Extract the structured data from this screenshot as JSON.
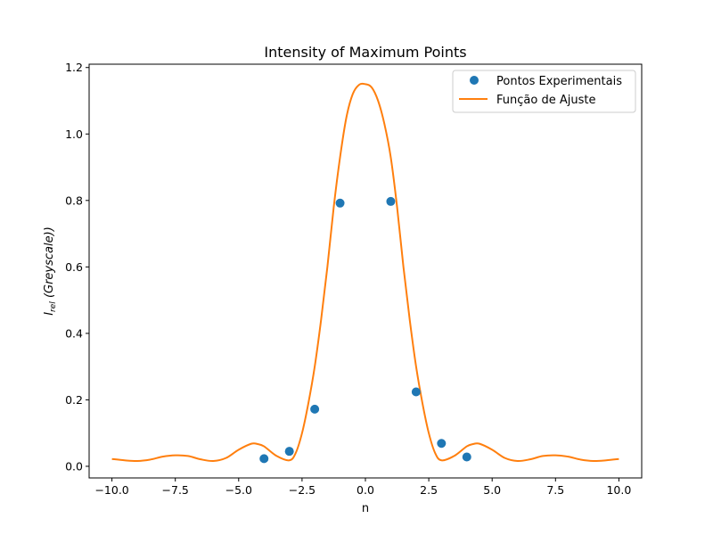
{
  "chart_data": {
    "type": "scatter",
    "title": "Intensity of Maximum Points",
    "xlabel": "n",
    "ylabel": {
      "base": "I",
      "subscript": "rel",
      "suffix": " (Greyscale))"
    },
    "xlim": [
      -10.9,
      10.9
    ],
    "ylim": [
      -0.035,
      1.21
    ],
    "grid": false,
    "legend_position": "upper right",
    "x_ticks": [
      -10.0,
      -7.5,
      -5.0,
      -2.5,
      0.0,
      2.5,
      5.0,
      7.5,
      10.0
    ],
    "x_tick_labels": [
      "−10.0",
      "−7.5",
      "−5.0",
      "−2.5",
      "0.0",
      "2.5",
      "5.0",
      "7.5",
      "10.0"
    ],
    "y_ticks": [
      0.0,
      0.2,
      0.4,
      0.6,
      0.8,
      1.0,
      1.2
    ],
    "y_tick_labels": [
      "0.0",
      "0.2",
      "0.4",
      "0.6",
      "0.8",
      "1.0",
      "1.2"
    ],
    "series": [
      {
        "name": "Pontos Experimentais",
        "kind": "scatter",
        "color": "#1f77b4",
        "x": [
          -4,
          -3,
          -2,
          -1,
          1,
          2,
          3,
          4
        ],
        "y": [
          0.023,
          0.045,
          0.172,
          0.792,
          0.797,
          0.224,
          0.069,
          0.028
        ]
      },
      {
        "name": "Função de Ajuste",
        "kind": "line",
        "color": "#ff7f0e",
        "x": [
          -10.0,
          -9.5,
          -9.0,
          -8.5,
          -8.0,
          -7.5,
          -7.0,
          -6.5,
          -6.0,
          -5.5,
          -5.0,
          -4.5,
          -4.25,
          -4.0,
          -3.5,
          -3.0,
          -2.75,
          -2.5,
          -2.25,
          -2.0,
          -1.75,
          -1.5,
          -1.25,
          -1.0,
          -0.75,
          -0.5,
          -0.25,
          0.0,
          0.25,
          0.5,
          0.75,
          1.0,
          1.25,
          1.5,
          1.75,
          2.0,
          2.25,
          2.5,
          2.75,
          3.0,
          3.5,
          4.0,
          4.25,
          4.5,
          5.0,
          5.5,
          6.0,
          6.5,
          7.0,
          7.5,
          8.0,
          8.5,
          9.0,
          9.5,
          10.0
        ],
        "y": [
          0.022,
          0.018,
          0.016,
          0.02,
          0.029,
          0.033,
          0.031,
          0.021,
          0.016,
          0.025,
          0.05,
          0.068,
          0.067,
          0.06,
          0.031,
          0.018,
          0.04,
          0.1,
          0.19,
          0.3,
          0.44,
          0.6,
          0.78,
          0.93,
          1.05,
          1.12,
          1.148,
          1.15,
          1.14,
          1.1,
          1.03,
          0.93,
          0.78,
          0.6,
          0.44,
          0.3,
          0.19,
          0.1,
          0.04,
          0.018,
          0.031,
          0.06,
          0.067,
          0.068,
          0.05,
          0.025,
          0.016,
          0.021,
          0.031,
          0.033,
          0.029,
          0.02,
          0.016,
          0.018,
          0.022
        ]
      }
    ]
  }
}
